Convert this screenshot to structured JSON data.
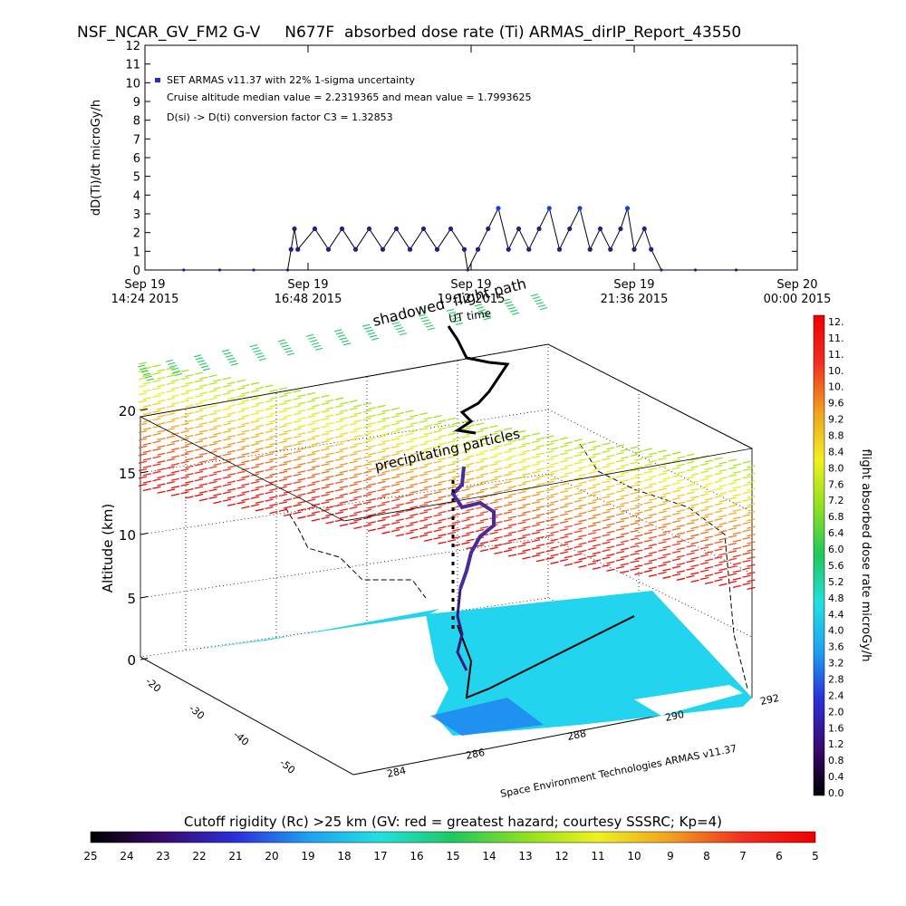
{
  "title": "NSF_NCAR_GV_FM2 G-V     N677F  absorbed dose rate (Ti) ARMAS_dirIP_Report_43550",
  "chart_data": [
    {
      "type": "line",
      "ylabel": "dD(Ti)/dt microGy/h",
      "ylim": [
        0,
        12
      ],
      "y_ticks": [
        "0",
        "1",
        "2",
        "3",
        "4",
        "5",
        "6",
        "7",
        "8",
        "9",
        "10",
        "11",
        "12"
      ],
      "x_ticks": [
        {
          "line1": "Sep 19",
          "line2": "14:24 2015"
        },
        {
          "line1": "Sep 19",
          "line2": "16:48 2015"
        },
        {
          "line1": "Sep 19",
          "line2": "19:12 2015"
        },
        {
          "line1": "Sep 19",
          "line2": "21:36 2015"
        },
        {
          "line1": "Sep 20",
          "line2": "00:00 2015"
        }
      ],
      "xlim_hours": [
        14.4,
        24.0
      ],
      "annotations": [
        "SET ARMAS v11.37 with 22% 1-sigma uncertainty",
        "Cruise altitude median value = 2.2319365 and mean value = 1.7993625",
        "D(si) -> D(ti) conversion factor C3 = 1.32853"
      ],
      "series": [
        {
          "color": "#2b1a8c",
          "x_hours": [
            14.97,
            15.5,
            16.0,
            16.5,
            16.55,
            16.6,
            16.65,
            16.9,
            17.1,
            17.3,
            17.5,
            17.7,
            17.9,
            18.1,
            18.3,
            18.5,
            18.7,
            18.9,
            19.1,
            19.15,
            19.3,
            19.45,
            19.6,
            19.75,
            19.9,
            20.05,
            20.2,
            20.35,
            20.5,
            20.65,
            20.8,
            20.95,
            21.1,
            21.25,
            21.4,
            21.5,
            21.6,
            21.75,
            21.85,
            22.0,
            22.5,
            23.1
          ],
          "values": [
            0,
            0,
            0,
            0,
            1.1,
            2.2,
            1.1,
            2.2,
            1.1,
            2.2,
            1.1,
            2.2,
            1.1,
            2.2,
            1.1,
            2.2,
            1.1,
            2.2,
            1.1,
            0,
            1.1,
            2.2,
            3.3,
            1.1,
            2.2,
            1.1,
            2.2,
            3.3,
            1.1,
            2.2,
            3.3,
            1.1,
            2.2,
            1.1,
            2.2,
            3.3,
            1.1,
            2.2,
            1.1,
            0,
            0,
            0
          ]
        }
      ]
    },
    {
      "type": "3d-map",
      "zlabel": "Altitude (km)",
      "z_ticks": [
        "0",
        "5",
        "10",
        "15",
        "20"
      ],
      "y_ticks": [
        "-20",
        "-30",
        "-40",
        "-50"
      ],
      "x_ticks": [
        "284",
        "286",
        "288",
        "290",
        "292"
      ],
      "labels": {
        "flight_path": "shadowed  flight path",
        "time": "UT time",
        "particles": "precipitating particles",
        "credit": "Space Environment Technologies ARMAS v11.37"
      }
    },
    {
      "type": "colorbar",
      "orientation": "vertical",
      "label": "flight absorbed dose rate microGy/h",
      "ticks": [
        "12.",
        "11.",
        "11.",
        "10.",
        "10.",
        "9.6",
        "9.2",
        "8.8",
        "8.4",
        "8.0",
        "7.6",
        "7.2",
        "6.8",
        "6.4",
        "6.0",
        "5.6",
        "5.2",
        "4.8",
        "4.4",
        "4.0",
        "3.6",
        "3.2",
        "2.8",
        "2.4",
        "2.0",
        "1.6",
        "1.2",
        "0.8",
        "0.4",
        "0.0"
      ]
    },
    {
      "type": "colorbar",
      "orientation": "horizontal",
      "label": "Cutoff rigidity (Rc) >25 km (GV: red = greatest hazard; courtesy SSSRC; Kp=4)",
      "ticks": [
        "25",
        "24",
        "23",
        "22",
        "21",
        "20",
        "19",
        "18",
        "17",
        "16",
        "15",
        "14",
        "13",
        "12",
        "11",
        "10",
        "9",
        "8",
        "7",
        "6",
        "5"
      ]
    }
  ],
  "colors": {
    "ramp": [
      "#000000",
      "#3a0a6e",
      "#2a30d8",
      "#1fa0f0",
      "#22e0e0",
      "#20c860",
      "#8ee020",
      "#f0f020",
      "#f0a020",
      "#f03020",
      "#f00000"
    ],
    "ground_cyan": "#22d4ee",
    "points": "#2b1a8c"
  }
}
